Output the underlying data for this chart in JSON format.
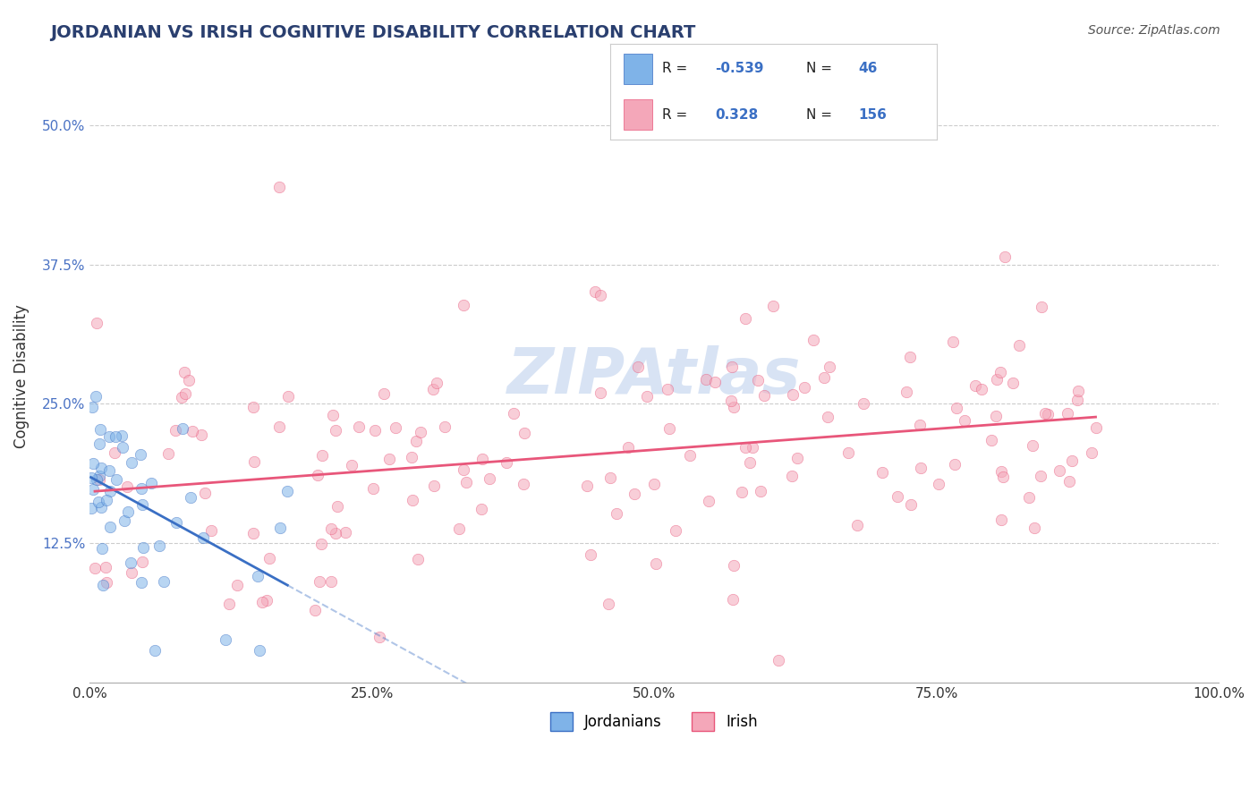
{
  "title": "JORDANIAN VS IRISH COGNITIVE DISABILITY CORRELATION CHART",
  "source": "Source: ZipAtlas.com",
  "xlabel": "",
  "ylabel": "Cognitive Disability",
  "xlim": [
    0.0,
    100.0
  ],
  "ylim": [
    0.0,
    55.0
  ],
  "yticks": [
    0.0,
    12.5,
    25.0,
    37.5,
    50.0
  ],
  "xticks": [
    0.0,
    25.0,
    50.0,
    75.0,
    100.0
  ],
  "xtick_labels": [
    "0.0%",
    "25.0%",
    "50.0%",
    "75.0%",
    "100.0%"
  ],
  "ytick_labels": [
    "",
    "12.5%",
    "25.0%",
    "37.5%",
    "50.0%"
  ],
  "jordanian_color": "#7fb3e8",
  "irish_color": "#f4a7b9",
  "jordanian_line_color": "#3a6fc4",
  "irish_line_color": "#e8567a",
  "legend_box_color": "#e8f0fb",
  "R_jordan": -0.539,
  "N_jordan": 46,
  "R_irish": 0.328,
  "N_irish": 156,
  "title_color": "#2a3f6f",
  "source_color": "#555555",
  "watermark_text": "ZIPAtlas",
  "watermark_color": "#c8d8f0",
  "background_color": "#ffffff",
  "grid_color": "#cccccc",
  "marker_size": 80,
  "marker_alpha": 0.55,
  "seed": 42
}
